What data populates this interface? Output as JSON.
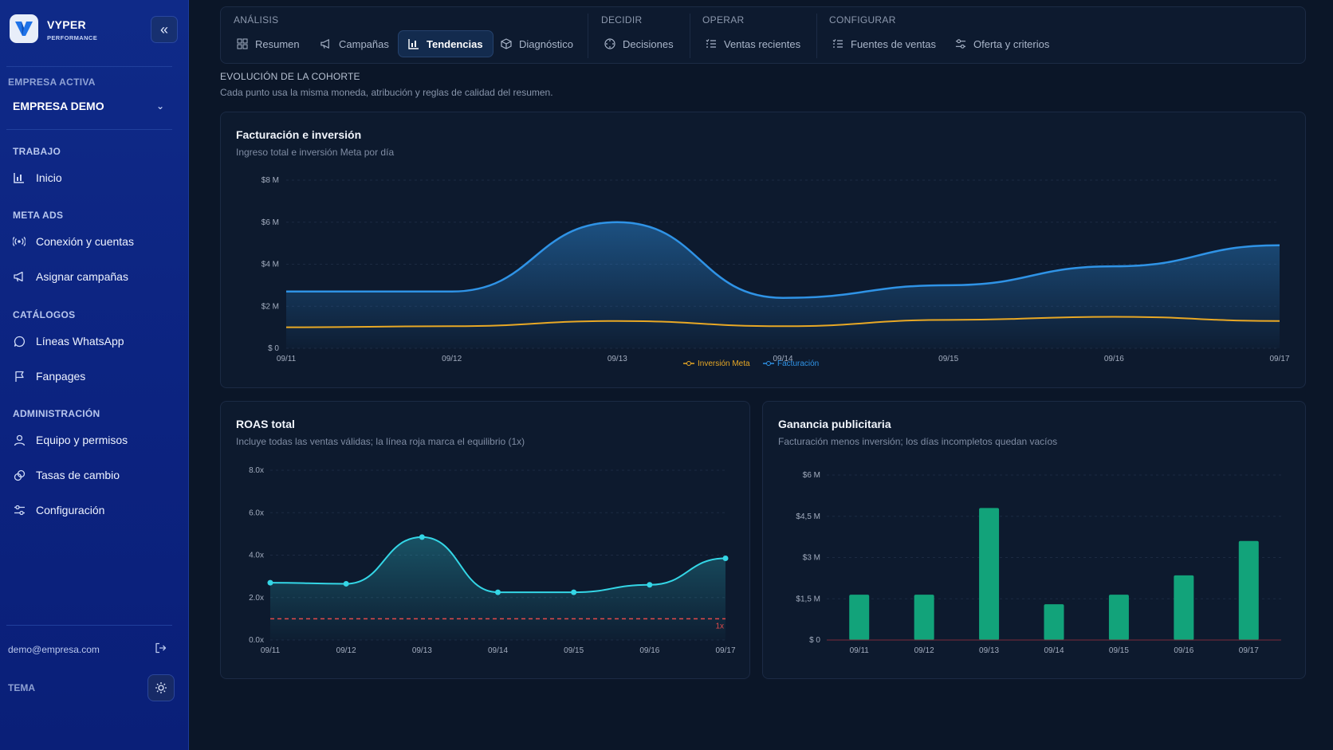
{
  "brand": {
    "name": "VYPER",
    "sub": "PERFORMANCE"
  },
  "sidebar": {
    "empresa_label": "EMPRESA ACTIVA",
    "empresa_value": "EMPRESA DEMO",
    "sections": {
      "trabajo": "TRABAJO",
      "meta_ads": "META ADS",
      "catalogos": "CATÁLOGOS",
      "administracion": "ADMINISTRACIÓN"
    },
    "items": {
      "inicio": "Inicio",
      "conexion": "Conexión y cuentas",
      "asignar": "Asignar campañas",
      "lineas": "Líneas WhatsApp",
      "fanpages": "Fanpages",
      "equipo": "Equipo y permisos",
      "tasas": "Tasas de cambio",
      "configuracion": "Configuración"
    },
    "email": "demo@empresa.com",
    "tema_label": "TEMA"
  },
  "tabs": {
    "groups": {
      "analisis": "ANÁLISIS",
      "decidir": "DECIDIR",
      "operar": "OPERAR",
      "configurar": "CONFIGURAR"
    },
    "resumen": "Resumen",
    "campanas": "Campañas",
    "tendencias": "Tendencias",
    "diagnostico": "Diagnóstico",
    "decisiones": "Decisiones",
    "ventas": "Ventas recientes",
    "fuentes": "Fuentes de ventas",
    "oferta": "Oferta y criterios",
    "active": "Tendencias"
  },
  "cohort": {
    "title": "EVOLUCIÓN DE LA COHORTE",
    "subtitle": "Cada punto usa la misma moneda, atribución y reglas de calidad del resumen."
  },
  "colors": {
    "facturacion": "#2f93e6",
    "inversion": "#e8a825",
    "roas": "#34d6e6",
    "breakeven": "#e24a4a",
    "ganancia": "#12a37a"
  },
  "chart_data": [
    {
      "type": "area",
      "title": "Facturación e inversión",
      "subtitle": "Ingreso total e inversión Meta por día",
      "categories": [
        "09/11",
        "09/12",
        "09/13",
        "09/14",
        "09/15",
        "09/16",
        "09/17"
      ],
      "yticks": [
        "$ 0",
        "$2 M",
        "$4 M",
        "$6 M",
        "$8 M"
      ],
      "ylim": [
        0,
        8
      ],
      "series": [
        {
          "name": "Inversión Meta",
          "values": [
            1.0,
            1.05,
            1.3,
            1.05,
            1.35,
            1.5,
            1.3
          ]
        },
        {
          "name": "Facturación",
          "values": [
            2.7,
            2.7,
            6.0,
            2.4,
            3.0,
            3.9,
            4.9
          ]
        }
      ],
      "legend": "bottom-center"
    },
    {
      "type": "line",
      "title": "ROAS total",
      "subtitle": "Incluye todas las ventas válidas; la línea roja marca el equilibrio (1x)",
      "categories": [
        "09/11",
        "09/12",
        "09/13",
        "09/14",
        "09/15",
        "09/16",
        "09/17"
      ],
      "yticks": [
        "0.0x",
        "2.0x",
        "4.0x",
        "6.0x",
        "8.0x"
      ],
      "ylim": [
        0,
        8
      ],
      "values": [
        2.7,
        2.65,
        4.85,
        2.25,
        2.25,
        2.6,
        3.85
      ],
      "reference_line": {
        "value": 1,
        "label": "1x"
      }
    },
    {
      "type": "bar",
      "title": "Ganancia publicitaria",
      "subtitle": "Facturación menos inversión; los días incompletos quedan vacíos",
      "categories": [
        "09/11",
        "09/12",
        "09/13",
        "09/14",
        "09/15",
        "09/16",
        "09/17"
      ],
      "yticks": [
        "$ 0",
        "$1,5 M",
        "$3 M",
        "$4,5 M",
        "$6 M"
      ],
      "ylim": [
        0,
        6
      ],
      "values": [
        1.65,
        1.65,
        4.8,
        1.3,
        1.65,
        2.35,
        3.6
      ]
    }
  ]
}
